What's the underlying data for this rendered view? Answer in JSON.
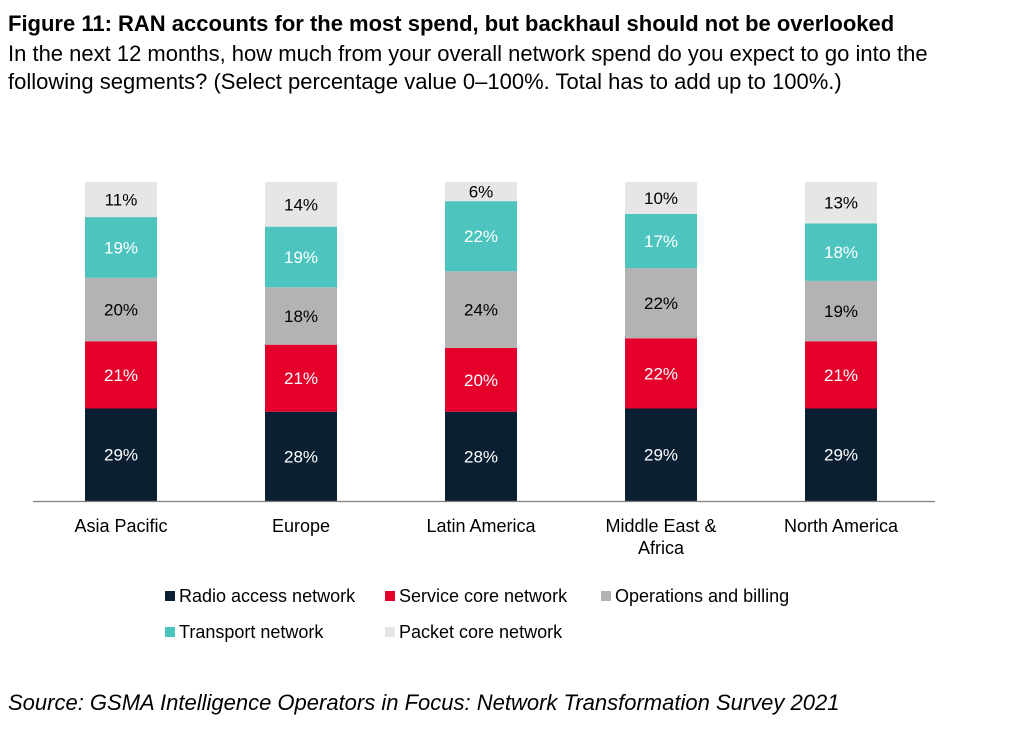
{
  "header": {
    "title": "Figure 11: RAN accounts for the most spend, but backhaul should not be overlooked",
    "subtitle": "In the next 12 months, how much from your overall network spend do you expect to go into the following segments? (Select percentage value 0–100%. Total has to add up to 100%.)"
  },
  "footer": {
    "source": "Source: GSMA Intelligence Operators in Focus: Network Transformation Survey 2021"
  },
  "chart_data": {
    "type": "bar",
    "stacked": true,
    "title": "RAN accounts for the most spend, but backhaul should not be overlooked",
    "categories": [
      [
        "Asia Pacific"
      ],
      [
        "Europe"
      ],
      [
        "Latin America"
      ],
      [
        "Middle East &",
        "Africa"
      ],
      [
        "North America"
      ]
    ],
    "series": [
      {
        "name": "Radio access network",
        "color": "#0b1f33",
        "label_color": "#ffffff",
        "values": [
          29,
          28,
          28,
          29,
          29
        ]
      },
      {
        "name": "Service core network",
        "color": "#e4002b",
        "label_color": "#ffffff",
        "values": [
          21,
          21,
          20,
          22,
          21
        ]
      },
      {
        "name": "Operations and billing",
        "color": "#b3b3b3",
        "label_color": "#000000",
        "values": [
          20,
          18,
          24,
          22,
          19
        ]
      },
      {
        "name": "Transport network",
        "color": "#4dc4be",
        "label_color": "#ffffff",
        "values": [
          19,
          19,
          22,
          17,
          18
        ]
      },
      {
        "name": "Packet core network",
        "color": "#e6e6e6",
        "label_color": "#000000",
        "values": [
          11,
          14,
          6,
          10,
          13
        ]
      }
    ],
    "value_suffix": "%",
    "ylim": [
      0,
      100
    ],
    "legend": [
      [
        "Radio access network",
        "Service core network",
        "Operations and billing"
      ],
      [
        "Transport network",
        "Packet core network"
      ]
    ]
  }
}
